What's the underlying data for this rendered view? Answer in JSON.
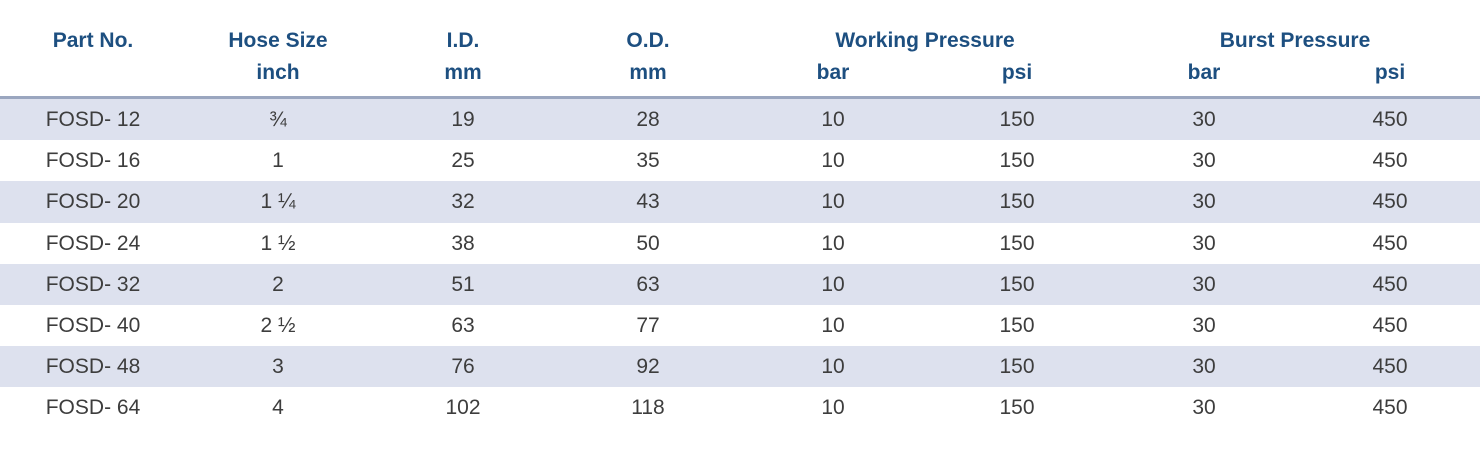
{
  "header": {
    "part_no": "Part No.",
    "hose_size": "Hose Size",
    "hose_size_unit": "inch",
    "id": "I.D.",
    "id_unit": "mm",
    "od": "O.D.",
    "od_unit": "mm",
    "working_pressure": "Working Pressure",
    "wp_bar": "bar",
    "wp_psi": "psi",
    "burst_pressure": "Burst Pressure",
    "bp_bar": "bar",
    "bp_psi": "psi"
  },
  "rows": [
    {
      "part_no": "FOSD- 12",
      "hose_size": "¾",
      "id": "19",
      "od": "28",
      "wp_bar": "10",
      "wp_psi": "150",
      "bp_bar": "30",
      "bp_psi": "450"
    },
    {
      "part_no": "FOSD- 16",
      "hose_size": "1",
      "id": "25",
      "od": "35",
      "wp_bar": "10",
      "wp_psi": "150",
      "bp_bar": "30",
      "bp_psi": "450"
    },
    {
      "part_no": "FOSD- 20",
      "hose_size": "1 ¼",
      "id": "32",
      "od": "43",
      "wp_bar": "10",
      "wp_psi": "150",
      "bp_bar": "30",
      "bp_psi": "450"
    },
    {
      "part_no": "FOSD- 24",
      "hose_size": "1 ½",
      "id": "38",
      "od": "50",
      "wp_bar": "10",
      "wp_psi": "150",
      "bp_bar": "30",
      "bp_psi": "450"
    },
    {
      "part_no": "FOSD- 32",
      "hose_size": "2",
      "id": "51",
      "od": "63",
      "wp_bar": "10",
      "wp_psi": "150",
      "bp_bar": "30",
      "bp_psi": "450"
    },
    {
      "part_no": "FOSD- 40",
      "hose_size": "2 ½",
      "id": "63",
      "od": "77",
      "wp_bar": "10",
      "wp_psi": "150",
      "bp_bar": "30",
      "bp_psi": "450"
    },
    {
      "part_no": "FOSD- 48",
      "hose_size": "3",
      "id": "76",
      "od": "92",
      "wp_bar": "10",
      "wp_psi": "150",
      "bp_bar": "30",
      "bp_psi": "450"
    },
    {
      "part_no": "FOSD- 64",
      "hose_size": "4",
      "id": "102",
      "od": "118",
      "wp_bar": "10",
      "wp_psi": "150",
      "bp_bar": "30",
      "bp_psi": "450"
    }
  ],
  "colors": {
    "header_text": "#1d4f80",
    "row_shade": "#dde1ee",
    "body_text": "#3d3d3d",
    "rule": "#9aa6bf"
  }
}
